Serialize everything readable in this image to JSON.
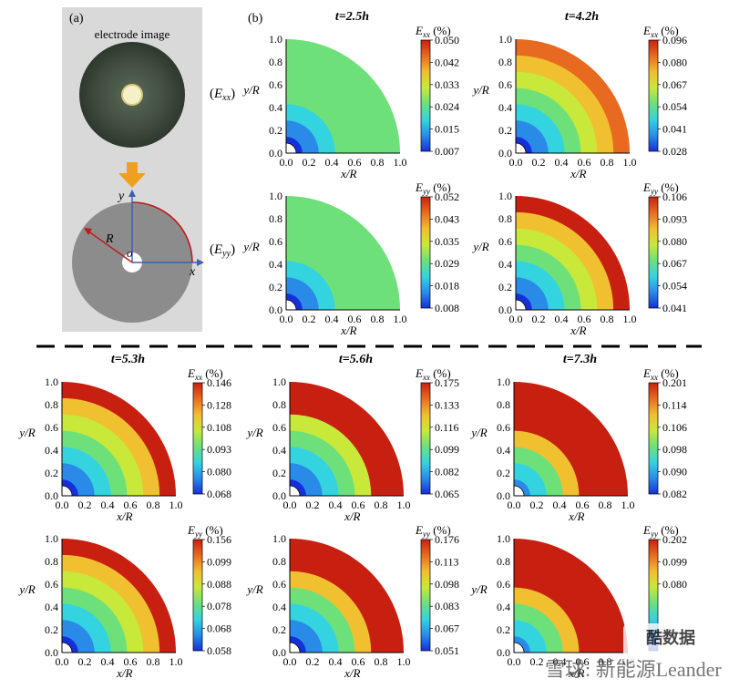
{
  "panel_a": {
    "label": "(a)",
    "caption": "electrode image",
    "axis_x": "x",
    "axis_y": "y",
    "radius_label": "R",
    "origin_label": "o"
  },
  "panel_b": {
    "label": "(b)"
  },
  "row_labels": {
    "exx": "(Exx)",
    "eyy": "(Eyy)"
  },
  "axis_labels": {
    "x": "x/R",
    "y": "y/R"
  },
  "axis_ticks": [
    "0.0",
    "0.2",
    "0.4",
    "0.6",
    "0.8",
    "1.0"
  ],
  "colors": {
    "panel_a_bg": "#d9d9d9",
    "disk_gray": "#8c8c8c",
    "arrow_orange": "#f0a020",
    "axis_blue": "#3a5fb0",
    "radius_red": "#c01818",
    "colormap": [
      "#1530d8",
      "#2a8ae8",
      "#33d3e0",
      "#6ee07a",
      "#c8e83a",
      "#f0c030",
      "#e86a20",
      "#c82010"
    ]
  },
  "plots": [
    {
      "id": "b-exx-2.5",
      "time": "t=2.5h",
      "var": "Exx",
      "unit": "(%)",
      "ticks": [
        "0.050",
        "0.042",
        "0.033",
        "0.024",
        "0.015",
        "0.007"
      ]
    },
    {
      "id": "b-exx-4.2",
      "time": "t=4.2h",
      "var": "Exx",
      "unit": "(%)",
      "ticks": [
        "0.096",
        "0.080",
        "0.067",
        "0.054",
        "0.041",
        "0.028"
      ]
    },
    {
      "id": "b-eyy-2.5",
      "time": "",
      "var": "Eyy",
      "unit": "(%)",
      "ticks": [
        "0.052",
        "0.043",
        "0.035",
        "0.029",
        "0.018",
        "0.008"
      ]
    },
    {
      "id": "b-eyy-4.2",
      "time": "",
      "var": "Eyy",
      "unit": "(%)",
      "ticks": [
        "0.106",
        "0.093",
        "0.080",
        "0.067",
        "0.054",
        "0.041"
      ]
    },
    {
      "id": "exx-5.3",
      "time": "t=5.3h",
      "var": "Exx",
      "unit": "(%)",
      "ticks": [
        "0.146",
        "0.128",
        "0.108",
        "0.093",
        "0.080",
        "0.068"
      ]
    },
    {
      "id": "exx-5.6",
      "time": "t=5.6h",
      "var": "Exx",
      "unit": "(%)",
      "ticks": [
        "0.175",
        "0.133",
        "0.116",
        "0.099",
        "0.082",
        "0.065"
      ]
    },
    {
      "id": "exx-7.3",
      "time": "t=7.3h",
      "var": "Exx",
      "unit": "(%)",
      "ticks": [
        "0.201",
        "0.114",
        "0.106",
        "0.098",
        "0.090",
        "0.082"
      ]
    },
    {
      "id": "eyy-5.3",
      "time": "",
      "var": "Eyy",
      "unit": "(%)",
      "ticks": [
        "0.156",
        "0.099",
        "0.088",
        "0.078",
        "0.068",
        "0.058"
      ]
    },
    {
      "id": "eyy-5.6",
      "time": "",
      "var": "Eyy",
      "unit": "(%)",
      "ticks": [
        "0.176",
        "0.113",
        "0.098",
        "0.083",
        "0.067",
        "0.051"
      ]
    },
    {
      "id": "eyy-7.3",
      "time": "",
      "var": "Eyy",
      "unit": "(%)",
      "ticks": [
        "0.202",
        "0.099",
        "0.080"
      ]
    }
  ],
  "watermark": {
    "text": "雪球: 新能源Leander",
    "logo_text": "酷数据"
  }
}
